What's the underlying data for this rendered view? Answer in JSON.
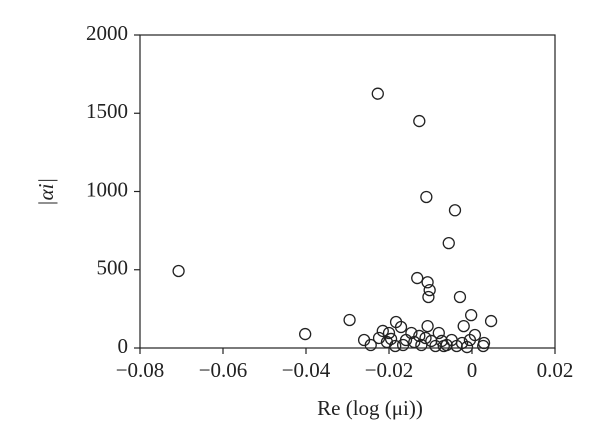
{
  "chart_data": {
    "type": "scatter",
    "xlabel": "Re (log (μi))",
    "ylabel": "|αi|",
    "xlim": [
      -0.08,
      0.02
    ],
    "xticks": [
      {
        "value": -0.08,
        "label": "−0.08"
      },
      {
        "value": -0.06,
        "label": "−0.06"
      },
      {
        "value": -0.04,
        "label": "−0.04"
      },
      {
        "value": -0.02,
        "label": "−0.02"
      },
      0,
      0.02
    ],
    "ylim": [
      0,
      2000
    ],
    "yticks": [
      0,
      500,
      1000,
      1500,
      2000
    ],
    "grid": false,
    "color": "#222222",
    "x": [
      -0.0707,
      -0.0402,
      -0.0295,
      -0.0227,
      -0.0127,
      -0.011,
      -0.0041,
      -0.0056,
      -0.0132,
      -0.0107,
      -0.0102,
      -0.0105,
      -0.0029,
      -0.0002,
      0.0046,
      -0.002,
      0.0007,
      0.0029,
      0.0027,
      -0.026,
      -0.0244,
      -0.0215,
      -0.02,
      -0.0195,
      -0.0183,
      -0.0171,
      -0.0159,
      -0.0146,
      -0.0139,
      -0.0127,
      -0.0122,
      -0.0107,
      -0.0098,
      -0.0088,
      -0.008,
      -0.0073,
      -0.0061,
      -0.0049,
      -0.0037,
      -0.0024,
      -0.0012,
      -0.0005,
      -0.0166,
      -0.0205,
      -0.0224,
      -0.0185,
      -0.0112,
      -0.0068
    ],
    "values": [
      492,
      89,
      179,
      1625,
      1450,
      965,
      880,
      670,
      447,
      420,
      370,
      326,
      326,
      210,
      172,
      140,
      83,
      32,
      13,
      51,
      19,
      109,
      96,
      58,
      166,
      134,
      51,
      96,
      38,
      77,
      19,
      140,
      45,
      13,
      96,
      45,
      19,
      51,
      13,
      32,
      6,
      51,
      19,
      38,
      64,
      13,
      64,
      13
    ]
  }
}
